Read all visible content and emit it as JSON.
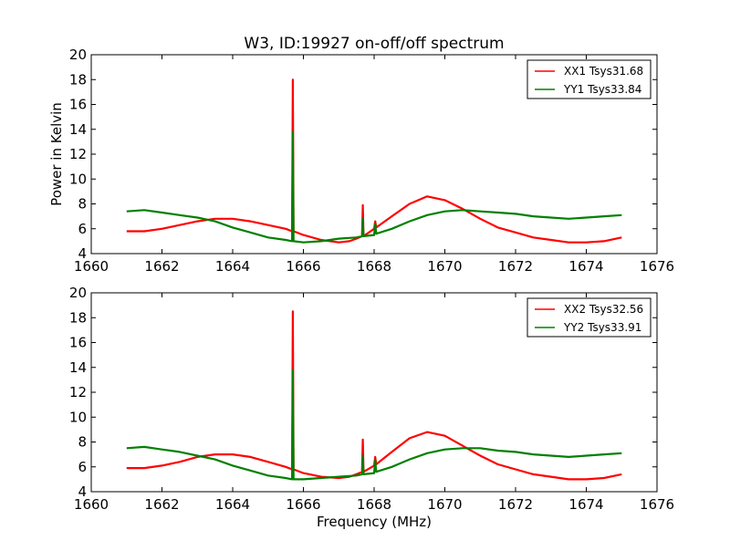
{
  "figure": {
    "title": "W3, ID:19927 on-off/off spectrum"
  },
  "chart_data": [
    {
      "type": "line",
      "title": "W3, ID:19927 on-off/off spectrum",
      "xlabel": "",
      "ylabel": "Power in Kelvin",
      "xlim": [
        1660,
        1676
      ],
      "ylim": [
        4,
        20
      ],
      "xticks": [
        1660,
        1662,
        1664,
        1666,
        1668,
        1670,
        1672,
        1674,
        1676
      ],
      "yticks": [
        4,
        6,
        8,
        10,
        12,
        14,
        16,
        18,
        20
      ],
      "legend_position": "top-right",
      "grid": false,
      "series": [
        {
          "name": "XX1 Tsys31.68",
          "color": "#ff0000",
          "x": [
            1661.0,
            1661.5,
            1662.0,
            1662.5,
            1663.0,
            1663.5,
            1664.0,
            1664.5,
            1665.0,
            1665.5,
            1665.68,
            1665.7,
            1665.72,
            1666.0,
            1666.5,
            1667.0,
            1667.3,
            1667.5,
            1667.66,
            1667.68,
            1667.7,
            1668.0,
            1668.03,
            1668.06,
            1668.5,
            1669.0,
            1669.5,
            1670.0,
            1670.5,
            1671.0,
            1671.5,
            1672.0,
            1672.5,
            1673.0,
            1673.5,
            1674.0,
            1674.5,
            1675.0
          ],
          "y": [
            5.8,
            5.8,
            6.0,
            6.3,
            6.6,
            6.8,
            6.8,
            6.6,
            6.3,
            6.0,
            5.8,
            18.0,
            5.8,
            5.5,
            5.1,
            4.9,
            5.0,
            5.2,
            5.4,
            7.9,
            5.4,
            6.0,
            6.6,
            6.1,
            7.0,
            8.0,
            8.6,
            8.3,
            7.6,
            6.8,
            6.1,
            5.7,
            5.3,
            5.1,
            4.9,
            4.9,
            5.0,
            5.3
          ]
        },
        {
          "name": "YY1 Tsys33.84",
          "color": "#008000",
          "x": [
            1661.0,
            1661.5,
            1662.0,
            1662.5,
            1663.0,
            1663.5,
            1664.0,
            1664.5,
            1665.0,
            1665.5,
            1665.68,
            1665.7,
            1665.72,
            1666.0,
            1666.5,
            1667.0,
            1667.5,
            1667.66,
            1667.68,
            1667.7,
            1668.0,
            1668.03,
            1668.06,
            1668.5,
            1669.0,
            1669.5,
            1670.0,
            1670.5,
            1671.0,
            1671.5,
            1672.0,
            1672.5,
            1673.0,
            1673.5,
            1674.0,
            1674.5,
            1675.0
          ],
          "y": [
            7.4,
            7.5,
            7.3,
            7.1,
            6.9,
            6.6,
            6.1,
            5.7,
            5.3,
            5.1,
            5.0,
            13.8,
            5.0,
            4.9,
            5.0,
            5.2,
            5.3,
            5.4,
            6.8,
            5.4,
            5.5,
            6.4,
            5.6,
            6.0,
            6.6,
            7.1,
            7.4,
            7.5,
            7.4,
            7.3,
            7.2,
            7.0,
            6.9,
            6.8,
            6.9,
            7.0,
            7.1
          ]
        }
      ]
    },
    {
      "type": "line",
      "title": "",
      "xlabel": "Frequency (MHz)",
      "ylabel": "",
      "xlim": [
        1660,
        1676
      ],
      "ylim": [
        4,
        20
      ],
      "xticks": [
        1660,
        1662,
        1664,
        1666,
        1668,
        1670,
        1672,
        1674,
        1676
      ],
      "yticks": [
        4,
        6,
        8,
        10,
        12,
        14,
        16,
        18,
        20
      ],
      "legend_position": "top-right",
      "grid": false,
      "series": [
        {
          "name": "XX2 Tsys32.56",
          "color": "#ff0000",
          "x": [
            1661.0,
            1661.5,
            1662.0,
            1662.5,
            1663.0,
            1663.5,
            1664.0,
            1664.5,
            1665.0,
            1665.5,
            1665.68,
            1665.7,
            1665.72,
            1666.0,
            1666.5,
            1667.0,
            1667.3,
            1667.5,
            1667.66,
            1667.68,
            1667.7,
            1668.0,
            1668.03,
            1668.06,
            1668.5,
            1669.0,
            1669.5,
            1670.0,
            1670.5,
            1671.0,
            1671.5,
            1672.0,
            1672.5,
            1673.0,
            1673.5,
            1674.0,
            1674.5,
            1675.0
          ],
          "y": [
            5.9,
            5.9,
            6.1,
            6.4,
            6.8,
            7.0,
            7.0,
            6.8,
            6.4,
            6.0,
            5.8,
            18.5,
            5.8,
            5.5,
            5.2,
            5.1,
            5.2,
            5.4,
            5.6,
            8.2,
            5.6,
            6.1,
            6.8,
            6.2,
            7.2,
            8.3,
            8.8,
            8.5,
            7.7,
            6.9,
            6.2,
            5.8,
            5.4,
            5.2,
            5.0,
            5.0,
            5.1,
            5.4
          ]
        },
        {
          "name": "YY2 Tsys33.91",
          "color": "#008000",
          "x": [
            1661.0,
            1661.5,
            1662.0,
            1662.5,
            1663.0,
            1663.5,
            1664.0,
            1664.5,
            1665.0,
            1665.5,
            1665.68,
            1665.7,
            1665.72,
            1666.0,
            1666.5,
            1667.0,
            1667.5,
            1667.66,
            1667.68,
            1667.7,
            1668.0,
            1668.03,
            1668.06,
            1668.5,
            1669.0,
            1669.5,
            1670.0,
            1670.5,
            1671.0,
            1671.5,
            1672.0,
            1672.5,
            1673.0,
            1673.5,
            1674.0,
            1674.5,
            1675.0
          ],
          "y": [
            7.5,
            7.6,
            7.4,
            7.2,
            6.9,
            6.6,
            6.1,
            5.7,
            5.3,
            5.1,
            5.0,
            13.8,
            5.0,
            5.0,
            5.1,
            5.2,
            5.3,
            5.4,
            6.9,
            5.4,
            5.5,
            6.5,
            5.6,
            6.0,
            6.6,
            7.1,
            7.4,
            7.5,
            7.5,
            7.3,
            7.2,
            7.0,
            6.9,
            6.8,
            6.9,
            7.0,
            7.1
          ]
        }
      ]
    }
  ]
}
